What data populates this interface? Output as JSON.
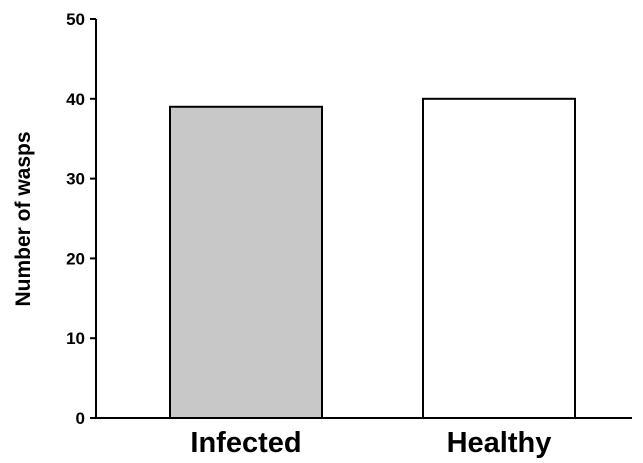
{
  "chart_data": {
    "type": "bar",
    "title": "",
    "xlabel": "",
    "ylabel": "Number of wasps",
    "categories": [
      "Infected",
      "Healthy"
    ],
    "values": [
      39,
      40
    ],
    "ylim": [
      0,
      50
    ],
    "yticks": [
      0,
      10,
      20,
      30,
      40,
      50
    ],
    "ytick_labels": [
      "0",
      "10",
      "20",
      "30",
      "40",
      "50"
    ],
    "grid": false,
    "legend": "none",
    "colors": {
      "bar_fills": [
        "#c8c8c8",
        "#ffffff"
      ],
      "bar_stroke": "#000000",
      "axis": "#000000"
    }
  }
}
